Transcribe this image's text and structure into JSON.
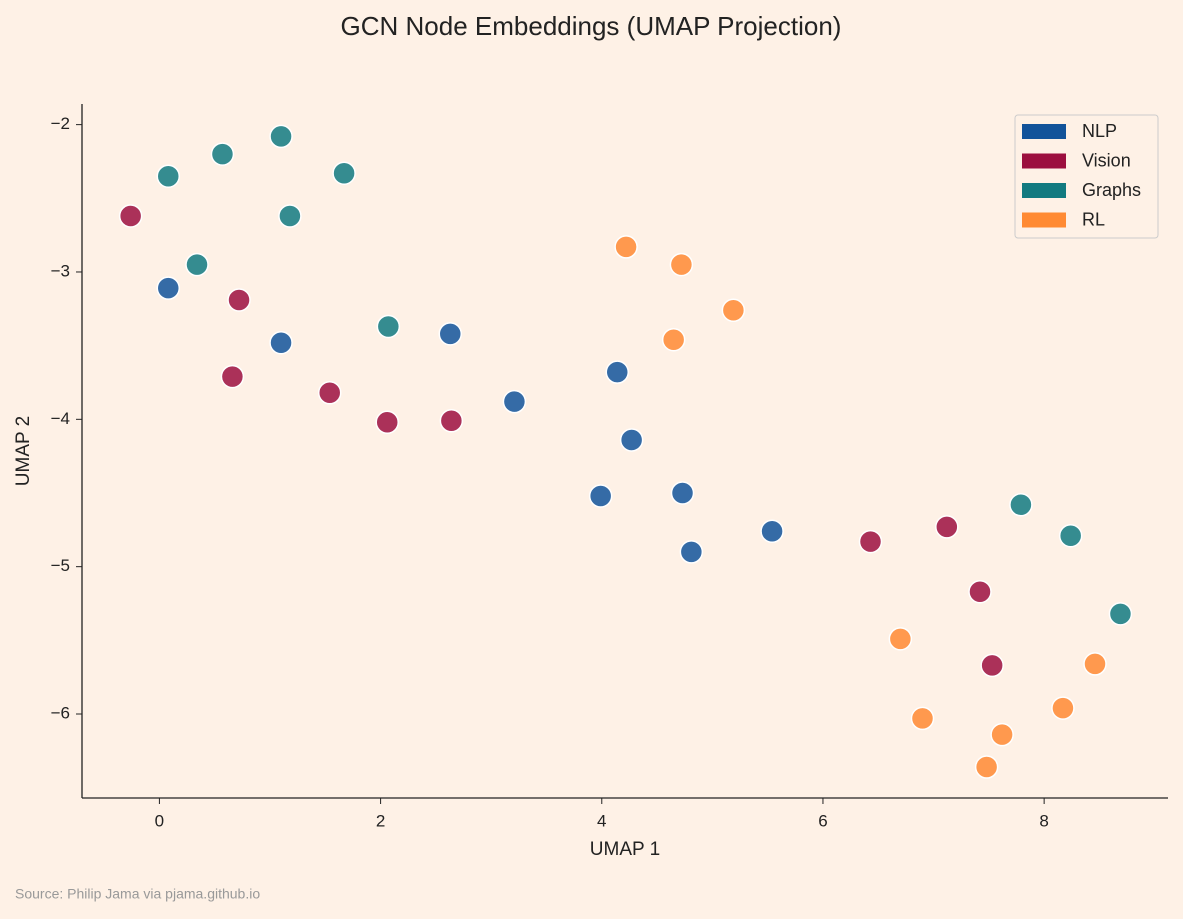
{
  "chart_data": {
    "type": "scatter",
    "title": "GCN Node Embeddings (UMAP Projection)",
    "x_label": "UMAP 1",
    "y_label": "UMAP 2",
    "source": "Source: Philip Jama via pjama.github.io",
    "xlim": [
      -0.7,
      9.12
    ],
    "ylim": [
      -6.57,
      -1.86
    ],
    "xticks": [
      0,
      2,
      4,
      6,
      8
    ],
    "yticks": [
      {
        "value": -2,
        "label": "−2"
      },
      {
        "value": -3,
        "label": "−3"
      },
      {
        "value": -4,
        "label": "−4"
      },
      {
        "value": -5,
        "label": "−5"
      },
      {
        "value": -6,
        "label": "−6"
      }
    ],
    "legend": "upper right",
    "series": [
      {
        "name": "NLP",
        "color": "#12539a",
        "x": [
          0.08,
          1.1,
          2.63,
          3.21,
          4.14,
          4.27,
          3.99,
          4.73,
          4.81,
          5.54
        ],
        "y": [
          -3.11,
          -3.48,
          -3.42,
          -3.88,
          -3.68,
          -4.14,
          -4.52,
          -4.5,
          -4.9,
          -4.76
        ]
      },
      {
        "name": "Vision",
        "color": "#9c0f3f",
        "x": [
          -0.26,
          0.72,
          0.66,
          1.54,
          2.06,
          2.64,
          6.43,
          7.12,
          7.42,
          7.53
        ],
        "y": [
          -2.62,
          -3.19,
          -3.71,
          -3.82,
          -4.02,
          -4.01,
          -4.83,
          -4.73,
          -5.17,
          -5.67
        ]
      },
      {
        "name": "Graphs",
        "color": "#127a80",
        "x": [
          0.08,
          0.57,
          1.1,
          1.67,
          1.18,
          0.34,
          2.07,
          7.79,
          8.24,
          8.69
        ],
        "y": [
          -2.35,
          -2.2,
          -2.08,
          -2.33,
          -2.62,
          -2.95,
          -3.37,
          -4.58,
          -4.79,
          -5.32
        ]
      },
      {
        "name": "RL",
        "color": "#ff8a33",
        "x": [
          4.22,
          4.72,
          5.19,
          4.65,
          6.7,
          6.9,
          7.62,
          7.48,
          8.17,
          8.46
        ],
        "y": [
          -2.83,
          -2.95,
          -3.26,
          -3.46,
          -5.49,
          -6.03,
          -6.14,
          -6.36,
          -5.96,
          -5.66
        ]
      }
    ]
  }
}
